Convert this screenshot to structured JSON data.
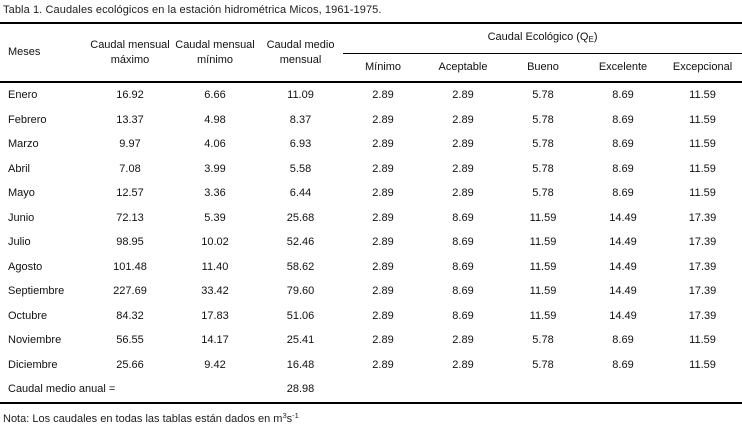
{
  "title": "Tabla 1. Caudales ecológicos en la estación hidrométrica Micos, 1961-1975.",
  "headers": {
    "meses": "Meses",
    "max_line1": "Caudal mensual",
    "max_line2": "máximo",
    "min_line1": "Caudal mensual",
    "min_line2": "mínimo",
    "medio_line1": "Caudal medio",
    "medio_line2": "mensual",
    "group_main": "Caudal Ecológico (Q",
    "group_sub": "E",
    "group_end": ")",
    "eco": [
      "Mínimo",
      "Aceptable",
      "Bueno",
      "Excelente",
      "Excepcional"
    ]
  },
  "rows": [
    {
      "mes": "Enero",
      "max": "16.92",
      "min": "6.66",
      "medio": "11.09",
      "eco": [
        "2.89",
        "2.89",
        "5.78",
        "8.69",
        "11.59"
      ]
    },
    {
      "mes": "Febrero",
      "max": "13.37",
      "min": "4.98",
      "medio": "8.37",
      "eco": [
        "2.89",
        "2.89",
        "5.78",
        "8.69",
        "11.59"
      ]
    },
    {
      "mes": "Marzo",
      "max": "9.97",
      "min": "4.06",
      "medio": "6.93",
      "eco": [
        "2.89",
        "2.89",
        "5.78",
        "8.69",
        "11.59"
      ]
    },
    {
      "mes": "Abril",
      "max": "7.08",
      "min": "3.99",
      "medio": "5.58",
      "eco": [
        "2.89",
        "2.89",
        "5.78",
        "8.69",
        "11.59"
      ]
    },
    {
      "mes": "Mayo",
      "max": "12.57",
      "min": "3.36",
      "medio": "6.44",
      "eco": [
        "2.89",
        "2.89",
        "5.78",
        "8.69",
        "11.59"
      ]
    },
    {
      "mes": "Junio",
      "max": "72.13",
      "min": "5.39",
      "medio": "25.68",
      "eco": [
        "2.89",
        "8.69",
        "11.59",
        "14.49",
        "17.39"
      ]
    },
    {
      "mes": "Julio",
      "max": "98.95",
      "min": "10.02",
      "medio": "52.46",
      "eco": [
        "2.89",
        "8.69",
        "11.59",
        "14.49",
        "17.39"
      ]
    },
    {
      "mes": "Agosto",
      "max": "101.48",
      "min": "11.40",
      "medio": "58.62",
      "eco": [
        "2.89",
        "8.69",
        "11.59",
        "14.49",
        "17.39"
      ]
    },
    {
      "mes": "Septiembre",
      "max": "227.69",
      "min": "33.42",
      "medio": "79.60",
      "eco": [
        "2.89",
        "8.69",
        "11.59",
        "14.49",
        "17.39"
      ]
    },
    {
      "mes": "Octubre",
      "max": "84.32",
      "min": "17.83",
      "medio": "51.06",
      "eco": [
        "2.89",
        "8.69",
        "11.59",
        "14.49",
        "17.39"
      ]
    },
    {
      "mes": "Noviembre",
      "max": "56.55",
      "min": "14.17",
      "medio": "25.41",
      "eco": [
        "2.89",
        "2.89",
        "5.78",
        "8.69",
        "11.59"
      ]
    },
    {
      "mes": "Diciembre",
      "max": "25.66",
      "min": "9.42",
      "medio": "16.48",
      "eco": [
        "2.89",
        "2.89",
        "5.78",
        "8.69",
        "11.59"
      ]
    }
  ],
  "summary": {
    "label": "Caudal medio anual =",
    "value": "28.98"
  },
  "note": {
    "main": "Nota: Los caudales en todas las tablas están dados en m",
    "sup1": "3",
    "mid": "s",
    "sup2": "-1"
  }
}
